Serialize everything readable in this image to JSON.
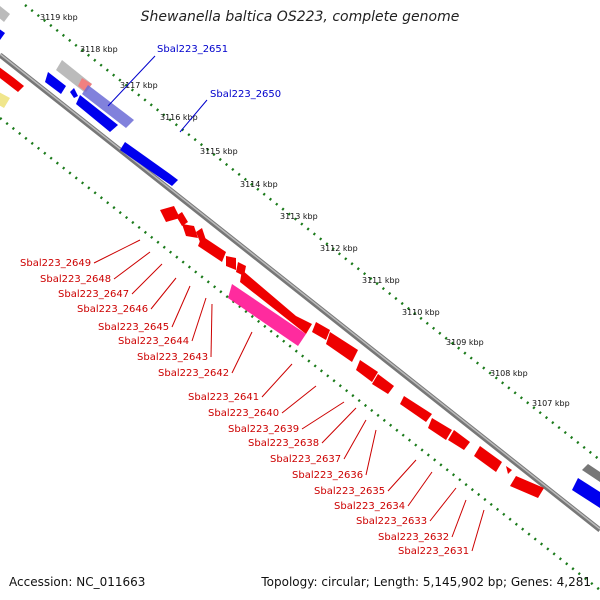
{
  "title": "Shewanella baltica OS223, complete genome",
  "footer": {
    "accession": "Accession: NC_011663",
    "summary": "Topology: circular; Length: 5,145,902 bp; Genes: 4,281"
  },
  "colors": {
    "forward_gene": "#0000ee",
    "reverse_gene": "#ee0000",
    "highlight": "#ff1493",
    "tick": "#1a7a1a",
    "backbone": "#888888"
  },
  "ticks": [
    "3119 kbp",
    "3118 kbp",
    "3117 kbp",
    "3116 kbp",
    "3115 kbp",
    "3114 kbp",
    "3113 kbp",
    "3112 kbp",
    "3111 kbp",
    "3110 kbp",
    "3109 kbp",
    "3108 kbp",
    "3107 kbp"
  ],
  "top_labels": [
    "Sbal223_2651",
    "Sbal223_2650"
  ],
  "bottom_labels": [
    "Sbal223_2649",
    "Sbal223_2648",
    "Sbal223_2647",
    "Sbal223_2646",
    "Sbal223_2645",
    "Sbal223_2644",
    "Sbal223_2643",
    "Sbal223_2642",
    "Sbal223_2641",
    "Sbal223_2640",
    "Sbal223_2639",
    "Sbal223_2638",
    "Sbal223_2637",
    "Sbal223_2636",
    "Sbal223_2635",
    "Sbal223_2634",
    "Sbal223_2633",
    "Sbal223_2632",
    "Sbal223_2631"
  ]
}
